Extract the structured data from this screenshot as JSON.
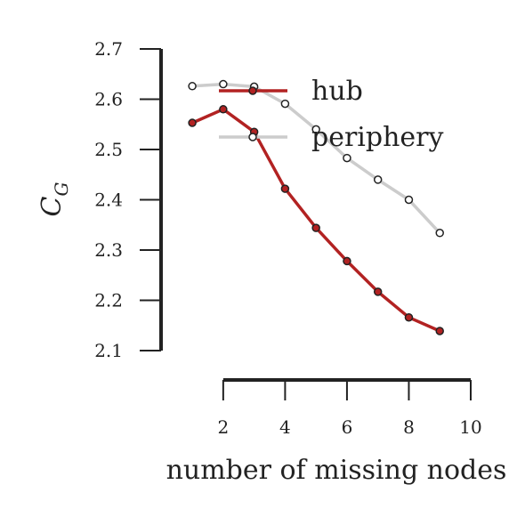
{
  "chart_data": {
    "type": "line",
    "title": "",
    "xlabel": "number of missing nodes",
    "ylabel_main": "C",
    "ylabel_sub": "G",
    "xlim": [
      1.4,
      10
    ],
    "ylim": [
      2.1,
      2.7
    ],
    "xticks": [
      2,
      4,
      6,
      8,
      10
    ],
    "xtick_labels": [
      "2",
      "4",
      "6",
      "8",
      "10"
    ],
    "yticks": [
      2.1,
      2.2,
      2.3,
      2.4,
      2.5,
      2.6,
      2.7
    ],
    "ytick_labels": [
      "2.1",
      "2.2",
      "2.3",
      "2.4",
      "2.5",
      "2.6",
      "2.7"
    ],
    "legend_position": "top-right",
    "grid": false,
    "series": [
      {
        "name": "hub",
        "color": "#b22222",
        "x": [
          1,
          2,
          3,
          4,
          5,
          6,
          7,
          8,
          9
        ],
        "y": [
          2.553,
          2.58,
          2.535,
          2.422,
          2.344,
          2.278,
          2.217,
          2.166,
          2.139
        ]
      },
      {
        "name": "periphery",
        "color": "#cccccc",
        "x": [
          1,
          2,
          3,
          4,
          5,
          6,
          7,
          8,
          9
        ],
        "y": [
          2.626,
          2.63,
          2.625,
          2.591,
          2.54,
          2.483,
          2.44,
          2.4,
          2.334
        ]
      }
    ]
  }
}
